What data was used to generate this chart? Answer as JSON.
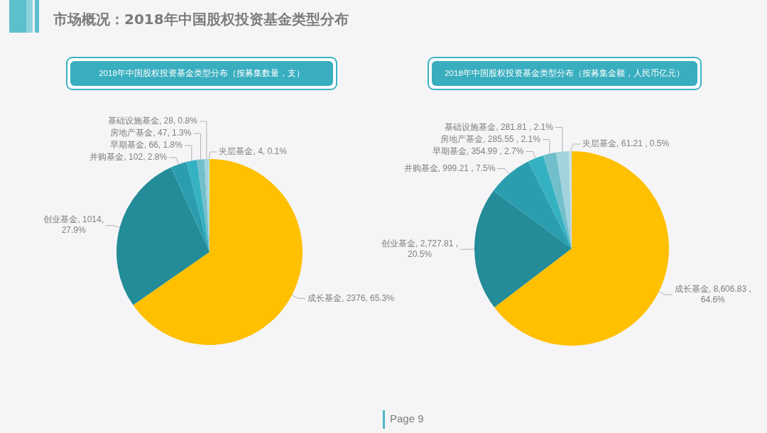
{
  "chart_data": [
    {
      "type": "other",
      "title": "市场概况：2018年中国股权投资基金类型分布",
      "annotations": [
        "Page 9"
      ]
    },
    {
      "type": "pie",
      "title": "2018年中国股权投资基金类型分布（按募集数量，支）",
      "categories": [
        "成长基金",
        "创业基金",
        "并购基金",
        "早期基金",
        "房地产基金",
        "基础设施基金",
        "夹层基金"
      ],
      "values": [
        2376,
        1014,
        102,
        66,
        47,
        28,
        4
      ],
      "colors": [
        "#ffc000",
        "#238c98",
        "#2a9eaf",
        "#35b2c2",
        "#72bfcc",
        "#a3d3dc",
        "#c6e4ea"
      ],
      "value_labels": [
        "2376, 65.3%",
        "1014, 27.9%",
        "102, 2.8%",
        "66, 1.8%",
        "47, 1.3%",
        "28, 0.8%",
        "4, 0.1%"
      ]
    },
    {
      "type": "pie",
      "title": "2018年中国股权投资基金类型分布（按募集金额，人民币亿元）",
      "categories": [
        "成长基金",
        "创业基金",
        "并购基金",
        "早期基金",
        "房地产基金",
        "基础设施基金",
        "夹层基金"
      ],
      "values": [
        8606.83,
        2727.81,
        999.21,
        354.99,
        285.55,
        281.81,
        61.21
      ],
      "colors": [
        "#ffc000",
        "#238c98",
        "#2a9eaf",
        "#35b2c2",
        "#72bfcc",
        "#a3d3dc",
        "#c6e4ea"
      ],
      "value_labels": [
        "8,606.83 , 64.6%",
        "2,727.81 , 20.5%",
        "999.21 , 7.5%",
        "354.99 , 2.7%",
        "285.55 , 2.1%",
        "281.81 , 2.1%",
        "61.21 , 0.5%"
      ]
    }
  ]
}
